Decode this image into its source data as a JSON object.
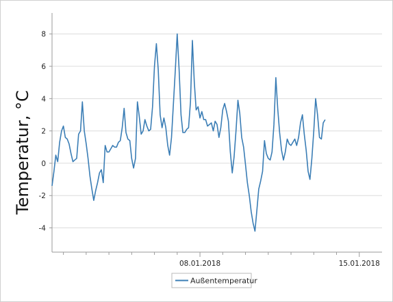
{
  "chart_data": {
    "type": "line",
    "ylabel": "Temperatur, °C",
    "xlabel": "",
    "ylim": [
      -5.5,
      9.3
    ],
    "xlim": [
      "2018-01-01T12:00",
      "2018-01-16T00:00"
    ],
    "y_ticks": [
      -4,
      -2,
      0,
      2,
      4,
      6,
      8
    ],
    "x_tick_labels": [
      {
        "date": "2018-01-08",
        "label": "08.01.2018"
      },
      {
        "date": "2018-01-15",
        "label": "15.01.2018"
      }
    ],
    "x_minor_ticks": [
      "2018-01-02",
      "2018-01-03",
      "2018-01-04",
      "2018-01-05",
      "2018-01-06",
      "2018-01-07",
      "2018-01-09",
      "2018-01-10",
      "2018-01-11",
      "2018-01-12",
      "2018-01-13",
      "2018-01-14"
    ],
    "grid": "horizontal",
    "legend": "bottom-center",
    "color": "#3a7db5",
    "series": [
      {
        "name": "Außentemperatur",
        "points": [
          [
            "2018-01-01T12:00",
            -1.4
          ],
          [
            "2018-01-01T14:00",
            -0.5
          ],
          [
            "2018-01-01T16:00",
            0.5
          ],
          [
            "2018-01-01T18:00",
            0.1
          ],
          [
            "2018-01-01T20:00",
            1.3
          ],
          [
            "2018-01-01T22:00",
            2.0
          ],
          [
            "2018-01-02T00:00",
            2.3
          ],
          [
            "2018-01-02T02:00",
            1.6
          ],
          [
            "2018-01-02T04:00",
            1.5
          ],
          [
            "2018-01-02T06:00",
            1.2
          ],
          [
            "2018-01-02T08:00",
            0.6
          ],
          [
            "2018-01-02T10:00",
            0.1
          ],
          [
            "2018-01-02T12:00",
            0.2
          ],
          [
            "2018-01-02T14:00",
            0.3
          ],
          [
            "2018-01-02T16:00",
            1.8
          ],
          [
            "2018-01-02T18:00",
            2.0
          ],
          [
            "2018-01-02T20:00",
            3.8
          ],
          [
            "2018-01-02T22:00",
            2.0
          ],
          [
            "2018-01-03T00:00",
            1.2
          ],
          [
            "2018-01-03T02:00",
            0.3
          ],
          [
            "2018-01-03T04:00",
            -0.8
          ],
          [
            "2018-01-03T06:00",
            -1.6
          ],
          [
            "2018-01-03T08:00",
            -2.3
          ],
          [
            "2018-01-03T10:00",
            -1.7
          ],
          [
            "2018-01-03T12:00",
            -1.2
          ],
          [
            "2018-01-03T14:00",
            -0.6
          ],
          [
            "2018-01-03T16:00",
            -0.4
          ],
          [
            "2018-01-03T18:00",
            -1.2
          ],
          [
            "2018-01-03T20:00",
            1.1
          ],
          [
            "2018-01-03T22:00",
            0.7
          ],
          [
            "2018-01-04T00:00",
            0.7
          ],
          [
            "2018-01-04T02:00",
            0.9
          ],
          [
            "2018-01-04T04:00",
            1.1
          ],
          [
            "2018-01-04T06:00",
            1.0
          ],
          [
            "2018-01-04T08:00",
            1.0
          ],
          [
            "2018-01-04T10:00",
            1.3
          ],
          [
            "2018-01-04T12:00",
            1.4
          ],
          [
            "2018-01-04T14:00",
            2.2
          ],
          [
            "2018-01-04T16:00",
            3.4
          ],
          [
            "2018-01-04T18:00",
            1.9
          ],
          [
            "2018-01-04T20:00",
            1.5
          ],
          [
            "2018-01-04T22:00",
            1.4
          ],
          [
            "2018-01-05T00:00",
            0.3
          ],
          [
            "2018-01-05T02:00",
            -0.3
          ],
          [
            "2018-01-05T04:00",
            0.3
          ],
          [
            "2018-01-05T06:00",
            3.8
          ],
          [
            "2018-01-05T08:00",
            2.9
          ],
          [
            "2018-01-05T10:00",
            1.8
          ],
          [
            "2018-01-05T12:00",
            2.0
          ],
          [
            "2018-01-05T14:00",
            2.7
          ],
          [
            "2018-01-05T16:00",
            2.3
          ],
          [
            "2018-01-05T18:00",
            2.0
          ],
          [
            "2018-01-05T20:00",
            2.1
          ],
          [
            "2018-01-05T22:00",
            3.5
          ],
          [
            "2018-01-06T00:00",
            6.0
          ],
          [
            "2018-01-06T02:00",
            7.4
          ],
          [
            "2018-01-06T04:00",
            5.8
          ],
          [
            "2018-01-06T06:00",
            3.0
          ],
          [
            "2018-01-06T08:00",
            2.2
          ],
          [
            "2018-01-06T10:00",
            2.8
          ],
          [
            "2018-01-06T12:00",
            2.2
          ],
          [
            "2018-01-06T14:00",
            1.1
          ],
          [
            "2018-01-06T16:00",
            0.5
          ],
          [
            "2018-01-06T18:00",
            1.6
          ],
          [
            "2018-01-06T20:00",
            3.7
          ],
          [
            "2018-01-06T22:00",
            5.8
          ],
          [
            "2018-01-07T00:00",
            8.0
          ],
          [
            "2018-01-07T02:00",
            5.8
          ],
          [
            "2018-01-07T04:00",
            3.0
          ],
          [
            "2018-01-07T06:00",
            1.9
          ],
          [
            "2018-01-07T08:00",
            1.9
          ],
          [
            "2018-01-07T10:00",
            2.1
          ],
          [
            "2018-01-07T12:00",
            2.2
          ],
          [
            "2018-01-07T14:00",
            3.8
          ],
          [
            "2018-01-07T16:00",
            7.6
          ],
          [
            "2018-01-07T18:00",
            5.0
          ],
          [
            "2018-01-07T20:00",
            3.3
          ],
          [
            "2018-01-07T22:00",
            3.5
          ],
          [
            "2018-01-08T00:00",
            2.8
          ],
          [
            "2018-01-08T02:00",
            3.2
          ],
          [
            "2018-01-08T04:00",
            2.7
          ],
          [
            "2018-01-08T06:00",
            2.7
          ],
          [
            "2018-01-08T08:00",
            2.3
          ],
          [
            "2018-01-08T10:00",
            2.4
          ],
          [
            "2018-01-08T12:00",
            2.5
          ],
          [
            "2018-01-08T14:00",
            2.0
          ],
          [
            "2018-01-08T16:00",
            2.6
          ],
          [
            "2018-01-08T18:00",
            2.4
          ],
          [
            "2018-01-08T20:00",
            1.6
          ],
          [
            "2018-01-08T22:00",
            2.2
          ],
          [
            "2018-01-09T00:00",
            3.3
          ],
          [
            "2018-01-09T02:00",
            3.7
          ],
          [
            "2018-01-09T04:00",
            3.2
          ],
          [
            "2018-01-09T06:00",
            2.6
          ],
          [
            "2018-01-09T08:00",
            0.7
          ],
          [
            "2018-01-09T10:00",
            -0.6
          ],
          [
            "2018-01-09T12:00",
            0.4
          ],
          [
            "2018-01-09T14:00",
            2.0
          ],
          [
            "2018-01-09T16:00",
            3.9
          ],
          [
            "2018-01-09T18:00",
            3.1
          ],
          [
            "2018-01-09T20:00",
            1.6
          ],
          [
            "2018-01-09T22:00",
            1.0
          ],
          [
            "2018-01-10T00:00",
            -0.1
          ],
          [
            "2018-01-10T02:00",
            -1.2
          ],
          [
            "2018-01-10T04:00",
            -2.0
          ],
          [
            "2018-01-10T06:00",
            -3.0
          ],
          [
            "2018-01-10T08:00",
            -3.7
          ],
          [
            "2018-01-10T10:00",
            -4.2
          ],
          [
            "2018-01-10T12:00",
            -2.9
          ],
          [
            "2018-01-10T14:00",
            -1.6
          ],
          [
            "2018-01-10T16:00",
            -1.1
          ],
          [
            "2018-01-10T18:00",
            -0.5
          ],
          [
            "2018-01-10T20:00",
            1.4
          ],
          [
            "2018-01-10T22:00",
            0.6
          ],
          [
            "2018-01-11T00:00",
            0.3
          ],
          [
            "2018-01-11T02:00",
            0.2
          ],
          [
            "2018-01-11T04:00",
            0.7
          ],
          [
            "2018-01-11T06:00",
            2.4
          ],
          [
            "2018-01-11T08:00",
            5.3
          ],
          [
            "2018-01-11T10:00",
            3.4
          ],
          [
            "2018-01-11T12:00",
            1.9
          ],
          [
            "2018-01-11T14:00",
            0.8
          ],
          [
            "2018-01-11T16:00",
            0.2
          ],
          [
            "2018-01-11T18:00",
            0.7
          ],
          [
            "2018-01-11T20:00",
            1.5
          ],
          [
            "2018-01-11T22:00",
            1.2
          ],
          [
            "2018-01-12T00:00",
            1.1
          ],
          [
            "2018-01-12T02:00",
            1.3
          ],
          [
            "2018-01-12T04:00",
            1.5
          ],
          [
            "2018-01-12T06:00",
            1.1
          ],
          [
            "2018-01-12T08:00",
            1.6
          ],
          [
            "2018-01-12T10:00",
            2.5
          ],
          [
            "2018-01-12T12:00",
            3.0
          ],
          [
            "2018-01-12T14:00",
            1.8
          ],
          [
            "2018-01-12T16:00",
            0.8
          ],
          [
            "2018-01-12T18:00",
            -0.5
          ],
          [
            "2018-01-12T20:00",
            -1.0
          ],
          [
            "2018-01-12T22:00",
            0.3
          ],
          [
            "2018-01-13T00:00",
            2.0
          ],
          [
            "2018-01-13T02:00",
            4.0
          ],
          [
            "2018-01-13T04:00",
            3.0
          ],
          [
            "2018-01-13T06:00",
            1.6
          ],
          [
            "2018-01-13T08:00",
            1.5
          ],
          [
            "2018-01-13T10:00",
            2.5
          ],
          [
            "2018-01-13T12:00",
            2.7
          ]
        ]
      }
    ]
  }
}
